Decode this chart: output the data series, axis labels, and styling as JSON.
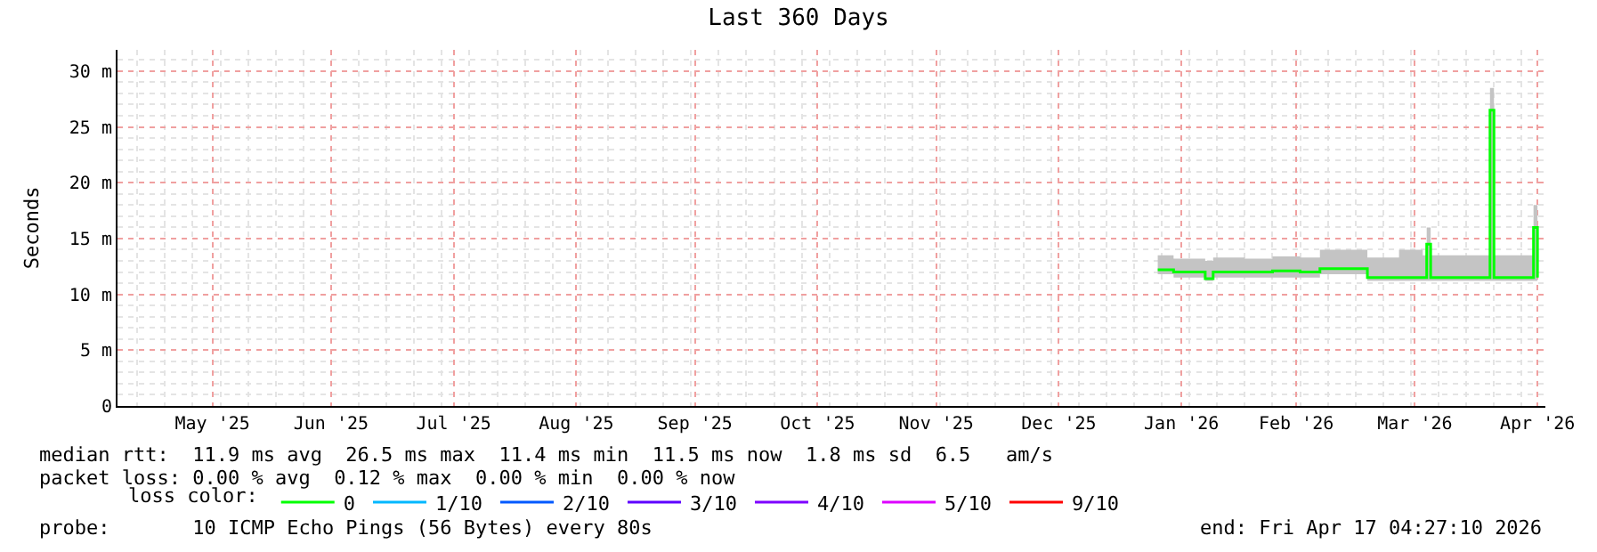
{
  "chart_data": {
    "type": "line",
    "title": "Last 360 Days",
    "ylabel": "Seconds",
    "legend_title": "loss color:",
    "x": [
      "2026-01-10",
      "2026-01-14",
      "2026-01-20",
      "2026-01-22",
      "2026-01-24",
      "2026-02-01",
      "2026-02-08",
      "2026-02-15",
      "2026-02-20",
      "2026-03-03",
      "2026-03-04",
      "2026-03-12",
      "2026-03-18",
      "2026-03-19",
      "2026-03-20",
      "2026-04-03",
      "2026-04-04",
      "2026-04-05",
      "2026-04-14",
      "2026-04-15",
      "2026-04-16"
    ],
    "series": [
      {
        "name": "0",
        "color": "#00ff00",
        "values": [
          12.2,
          12,
          12,
          11.4,
          12,
          12,
          12.1,
          12,
          12.3,
          12.3,
          11.5,
          11.5,
          11.5,
          14.5,
          11.5,
          11.5,
          26.5,
          11.5,
          11.5,
          16,
          11.5
        ],
        "lower": [
          11.8,
          11.5,
          11.5,
          11.2,
          11.5,
          11.5,
          11.5,
          11.5,
          11.8,
          11.8,
          11.2,
          11.2,
          11.2,
          11.2,
          11.2,
          11.2,
          11.2,
          11.2,
          11.2,
          11.2,
          11.2
        ],
        "upper": [
          13.5,
          13.2,
          13.2,
          13,
          13.3,
          13.2,
          13.4,
          13.3,
          14,
          14,
          13.3,
          14,
          13.5,
          16,
          13.5,
          13.5,
          28.5,
          13.5,
          13.5,
          18,
          13.5
        ]
      },
      {
        "name": "1/10",
        "color": "#00b8ff",
        "values": [
          null,
          null,
          null,
          null,
          null,
          null,
          null,
          null,
          null,
          null,
          null,
          null,
          null,
          null,
          null,
          null,
          null,
          null,
          null,
          null,
          null
        ]
      },
      {
        "name": "2/10",
        "color": "#0059ff",
        "values": [
          null,
          null,
          null,
          null,
          null,
          null,
          null,
          null,
          null,
          null,
          null,
          null,
          null,
          null,
          null,
          null,
          null,
          null,
          null,
          null,
          null
        ]
      },
      {
        "name": "3/10",
        "color": "#5e00ff",
        "values": [
          null,
          null,
          null,
          null,
          null,
          null,
          null,
          null,
          null,
          null,
          null,
          null,
          null,
          null,
          null,
          null,
          null,
          null,
          null,
          null,
          null
        ]
      },
      {
        "name": "4/10",
        "color": "#7e00ff",
        "values": [
          null,
          null,
          null,
          null,
          null,
          null,
          null,
          null,
          null,
          null,
          null,
          null,
          null,
          null,
          null,
          null,
          null,
          null,
          null,
          null,
          null
        ]
      },
      {
        "name": "5/10",
        "color": "#dd00ff",
        "values": [
          null,
          null,
          null,
          null,
          null,
          null,
          null,
          null,
          null,
          null,
          null,
          null,
          null,
          null,
          null,
          null,
          null,
          null,
          null,
          null,
          null
        ]
      },
      {
        "name": "9/10",
        "color": "#ff0000",
        "values": [
          null,
          null,
          null,
          null,
          null,
          null,
          null,
          null,
          null,
          null,
          null,
          null,
          null,
          null,
          null,
          null,
          null,
          null,
          null,
          null,
          null
        ]
      }
    ],
    "xlim": [
      "2025-04-22",
      "2026-04-18"
    ],
    "xticks": [
      {
        "value": "2025-05-16",
        "label": "May '25"
      },
      {
        "value": "2025-06-15",
        "label": "Jun '25"
      },
      {
        "value": "2025-07-16",
        "label": "Jul '25"
      },
      {
        "value": "2025-08-16",
        "label": "Aug '25"
      },
      {
        "value": "2025-09-15",
        "label": "Sep '25"
      },
      {
        "value": "2025-10-16",
        "label": "Oct '25"
      },
      {
        "value": "2025-11-15",
        "label": "Nov '25"
      },
      {
        "value": "2025-12-16",
        "label": "Dec '25"
      },
      {
        "value": "2026-01-16",
        "label": "Jan '26"
      },
      {
        "value": "2026-02-14",
        "label": "Feb '26"
      },
      {
        "value": "2026-03-16",
        "label": "Mar '26"
      },
      {
        "value": "2026-04-16",
        "label": "Apr '26"
      }
    ],
    "ylim": [
      0,
      31.9
    ],
    "yticks": [
      0,
      {
        "value": 5,
        "label": "5 m"
      },
      {
        "value": 10,
        "label": "10 m"
      },
      {
        "value": 15,
        "label": "15 m"
      },
      {
        "value": 20,
        "label": "20 m"
      },
      {
        "value": 25,
        "label": "25 m"
      },
      {
        "value": 30,
        "label": "30 m"
      }
    ],
    "grid": true,
    "legend": "bottom left",
    "marker": "none",
    "line_style": "solid",
    "annotations": [
      "median rtt:  11.9 ms avg  26.5 ms max  11.4 ms min  11.5 ms now  1.8 ms sd  6.5   am/s",
      "packet loss: 0.00 % avg  0.12 % max  0.00 % min  0.00 % now",
      "probe:       10 ICMP Echo Pings (56 Bytes) every 80s",
      "end: Fri Apr 17 04:27:10 2026"
    ]
  }
}
